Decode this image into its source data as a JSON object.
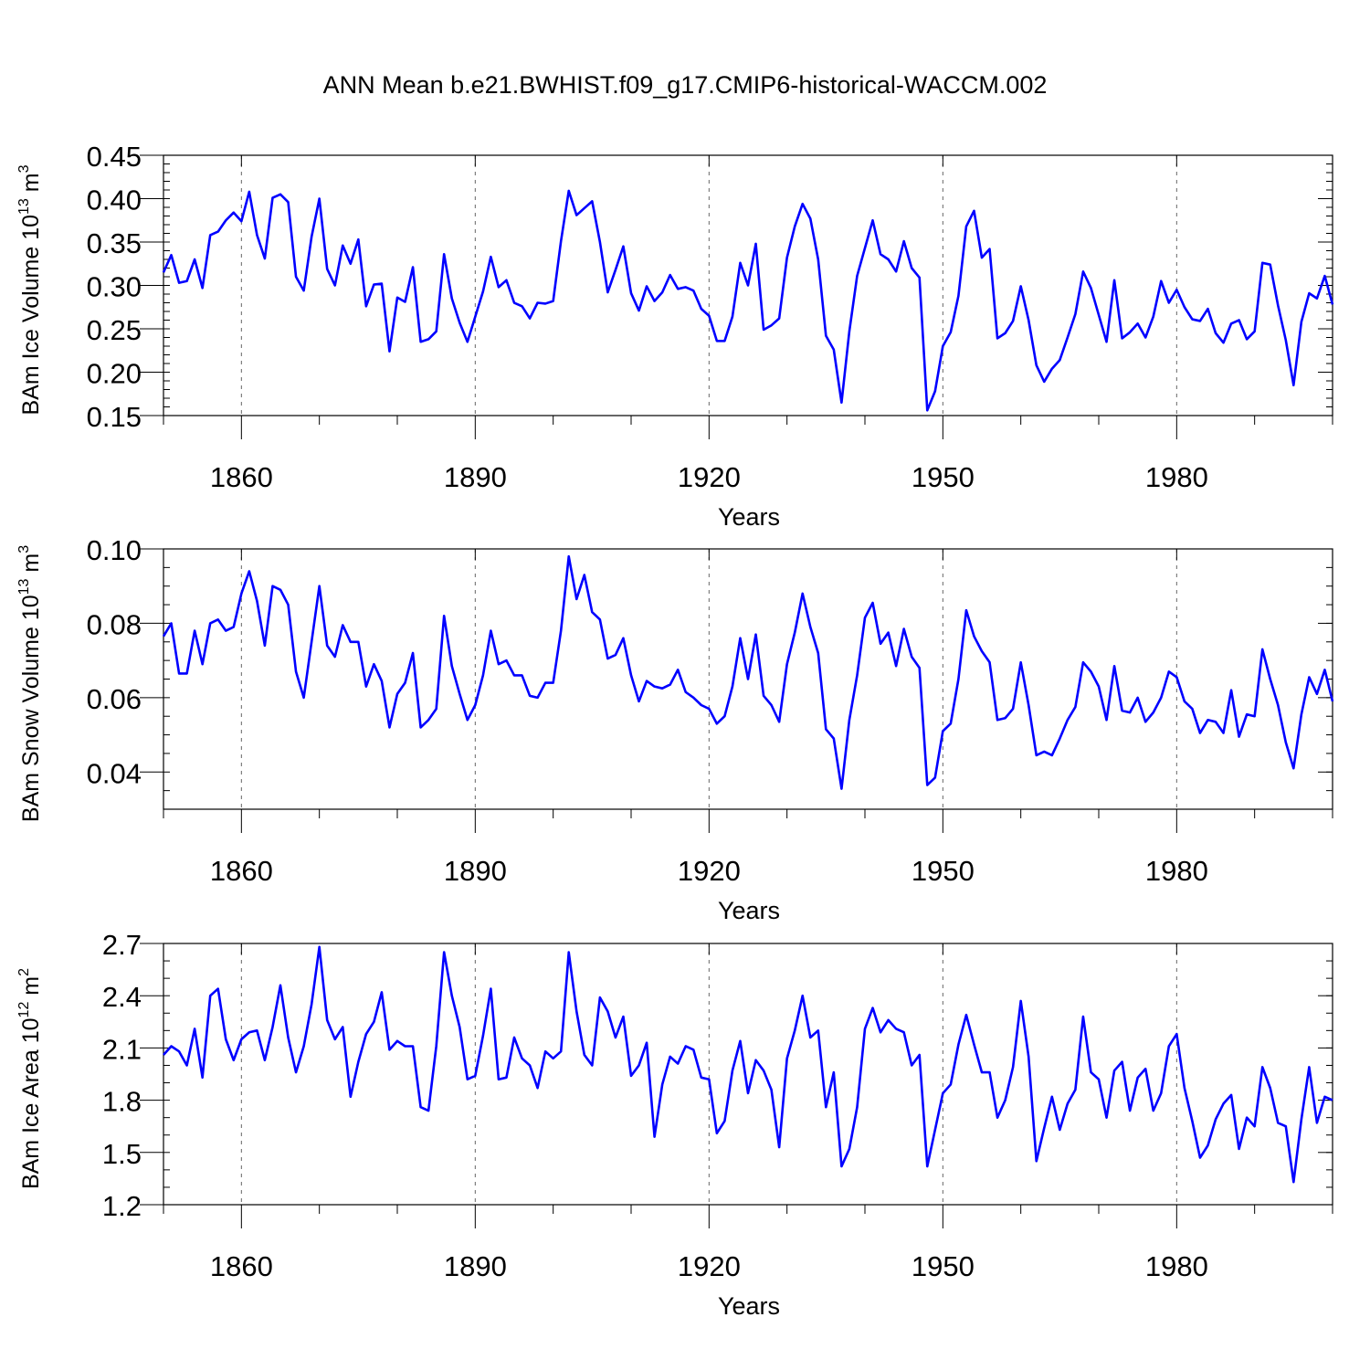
{
  "title": "ANN Mean b.e21.BWHIST.f09_g17.CMIP6-historical-WACCM.002",
  "colors": {
    "line": "#0000ff",
    "axis": "#000000",
    "grid": "#666666"
  },
  "chart_data": [
    {
      "type": "line",
      "ylabel_base": "BAm Ice Volume 10",
      "ylabel_exp": "13",
      "ylabel_unit": "m",
      "ylabel_unit_exp": "3",
      "xlabel": "Years",
      "xlim": [
        1850,
        2000
      ],
      "ylim": [
        0.15,
        0.45
      ],
      "xticks": [
        1860,
        1890,
        1920,
        1950,
        1980
      ],
      "yticks": [
        0.15,
        0.2,
        0.25,
        0.3,
        0.35,
        0.4,
        0.45
      ],
      "ytick_labels": [
        "0.15",
        "0.20",
        "0.25",
        "0.30",
        "0.35",
        "0.40",
        "0.45"
      ],
      "yminor": 0.01,
      "x_start": 1850,
      "values": [
        0.315,
        0.335,
        0.303,
        0.305,
        0.33,
        0.297,
        0.358,
        0.362,
        0.375,
        0.384,
        0.374,
        0.408,
        0.358,
        0.331,
        0.401,
        0.405,
        0.396,
        0.31,
        0.294,
        0.356,
        0.4,
        0.319,
        0.3,
        0.346,
        0.325,
        0.353,
        0.276,
        0.301,
        0.302,
        0.224,
        0.286,
        0.281,
        0.321,
        0.235,
        0.238,
        0.247,
        0.336,
        0.285,
        0.257,
        0.235,
        0.264,
        0.293,
        0.333,
        0.298,
        0.306,
        0.28,
        0.276,
        0.262,
        0.28,
        0.279,
        0.282,
        0.351,
        0.409,
        0.381,
        0.389,
        0.397,
        0.35,
        0.292,
        0.318,
        0.345,
        0.291,
        0.271,
        0.299,
        0.282,
        0.292,
        0.312,
        0.296,
        0.298,
        0.294,
        0.273,
        0.265,
        0.236,
        0.236,
        0.264,
        0.326,
        0.3,
        0.348,
        0.249,
        0.254,
        0.262,
        0.332,
        0.368,
        0.394,
        0.377,
        0.33,
        0.242,
        0.226,
        0.165,
        0.247,
        0.311,
        0.343,
        0.375,
        0.336,
        0.33,
        0.316,
        0.351,
        0.32,
        0.309,
        0.156,
        0.178,
        0.23,
        0.246,
        0.288,
        0.368,
        0.386,
        0.332,
        0.342,
        0.239,
        0.245,
        0.259,
        0.299,
        0.26,
        0.208,
        0.189,
        0.204,
        0.214,
        0.24,
        0.267,
        0.316,
        0.297,
        0.266,
        0.235,
        0.306,
        0.239,
        0.246,
        0.256,
        0.24,
        0.264,
        0.305,
        0.28,
        0.295,
        0.275,
        0.261,
        0.259,
        0.273,
        0.245,
        0.234,
        0.256,
        0.26,
        0.238,
        0.247,
        0.326,
        0.324,
        0.277,
        0.237,
        0.185,
        0.258,
        0.291,
        0.285,
        0.311,
        0.278
      ]
    },
    {
      "type": "line",
      "ylabel_base": "BAm Snow Volume 10",
      "ylabel_exp": "13",
      "ylabel_unit": "m",
      "ylabel_unit_exp": "3",
      "xlabel": "Years",
      "xlim": [
        1850,
        2000
      ],
      "ylim": [
        0.03,
        0.1
      ],
      "xticks": [
        1860,
        1890,
        1920,
        1950,
        1980
      ],
      "yticks": [
        0.04,
        0.06,
        0.08,
        0.1
      ],
      "ytick_labels": [
        "0.04",
        "0.06",
        "0.08",
        "0.10"
      ],
      "yminor": 0.005,
      "x_start": 1850,
      "values": [
        0.0765,
        0.08,
        0.0665,
        0.0665,
        0.078,
        0.069,
        0.08,
        0.081,
        0.078,
        0.079,
        0.088,
        0.094,
        0.086,
        0.074,
        0.09,
        0.089,
        0.085,
        0.067,
        0.06,
        0.075,
        0.09,
        0.074,
        0.071,
        0.0795,
        0.075,
        0.075,
        0.063,
        0.069,
        0.0645,
        0.052,
        0.061,
        0.064,
        0.072,
        0.052,
        0.054,
        0.057,
        0.082,
        0.0685,
        0.061,
        0.054,
        0.058,
        0.066,
        0.078,
        0.069,
        0.07,
        0.066,
        0.066,
        0.0605,
        0.06,
        0.064,
        0.064,
        0.078,
        0.098,
        0.0865,
        0.093,
        0.083,
        0.081,
        0.0705,
        0.0715,
        0.076,
        0.066,
        0.059,
        0.0645,
        0.063,
        0.0625,
        0.0635,
        0.0675,
        0.0615,
        0.06,
        0.058,
        0.057,
        0.053,
        0.055,
        0.063,
        0.076,
        0.065,
        0.077,
        0.0605,
        0.058,
        0.0535,
        0.069,
        0.0775,
        0.088,
        0.079,
        0.072,
        0.0515,
        0.049,
        0.0355,
        0.054,
        0.066,
        0.0815,
        0.0855,
        0.0745,
        0.0775,
        0.0685,
        0.0785,
        0.071,
        0.068,
        0.0365,
        0.0385,
        0.051,
        0.053,
        0.065,
        0.0835,
        0.0765,
        0.0725,
        0.0695,
        0.054,
        0.0545,
        0.057,
        0.0695,
        0.058,
        0.0445,
        0.0455,
        0.0445,
        0.049,
        0.054,
        0.0575,
        0.0695,
        0.067,
        0.063,
        0.054,
        0.0685,
        0.0565,
        0.056,
        0.06,
        0.0535,
        0.056,
        0.06,
        0.067,
        0.0655,
        0.059,
        0.057,
        0.0505,
        0.054,
        0.0535,
        0.0505,
        0.062,
        0.0495,
        0.0555,
        0.055,
        0.073,
        0.065,
        0.058,
        0.048,
        0.041,
        0.0555,
        0.0655,
        0.061,
        0.0675,
        0.059
      ]
    },
    {
      "type": "line",
      "ylabel_base": "BAm Ice Area 10",
      "ylabel_exp": "12",
      "ylabel_unit": "m",
      "ylabel_unit_exp": "2",
      "xlabel": "Years",
      "xlim": [
        1850,
        2000
      ],
      "ylim": [
        1.2,
        2.7
      ],
      "xticks": [
        1860,
        1890,
        1920,
        1950,
        1980
      ],
      "yticks": [
        1.2,
        1.5,
        1.8,
        2.1,
        2.4,
        2.7
      ],
      "ytick_labels": [
        "1.2",
        "1.5",
        "1.8",
        "2.1",
        "2.4",
        "2.7"
      ],
      "yminor": 0.1,
      "x_start": 1850,
      "values": [
        2.06,
        2.11,
        2.08,
        2.0,
        2.21,
        1.93,
        2.4,
        2.44,
        2.15,
        2.03,
        2.15,
        2.19,
        2.2,
        2.03,
        2.22,
        2.46,
        2.16,
        1.96,
        2.11,
        2.35,
        2.68,
        2.26,
        2.15,
        2.22,
        1.82,
        2.02,
        2.18,
        2.25,
        2.42,
        2.09,
        2.14,
        2.11,
        2.11,
        1.76,
        1.74,
        2.11,
        2.65,
        2.4,
        2.22,
        1.92,
        1.94,
        2.17,
        2.44,
        1.92,
        1.93,
        2.16,
        2.04,
        2.0,
        1.87,
        2.08,
        2.04,
        2.08,
        2.65,
        2.31,
        2.06,
        2.0,
        2.39,
        2.31,
        2.16,
        2.28,
        1.94,
        2.0,
        2.13,
        1.59,
        1.89,
        2.05,
        2.01,
        2.11,
        2.09,
        1.93,
        1.92,
        1.61,
        1.68,
        1.97,
        2.14,
        1.84,
        2.03,
        1.97,
        1.86,
        1.53,
        2.04,
        2.2,
        2.4,
        2.16,
        2.2,
        1.76,
        1.96,
        1.42,
        1.52,
        1.76,
        2.21,
        2.33,
        2.19,
        2.26,
        2.21,
        2.19,
        2.0,
        2.06,
        1.42,
        1.63,
        1.84,
        1.89,
        2.12,
        2.29,
        2.12,
        1.96,
        1.96,
        1.7,
        1.8,
        1.99,
        2.37,
        2.05,
        1.45,
        1.64,
        1.82,
        1.63,
        1.78,
        1.86,
        2.28,
        1.96,
        1.92,
        1.7,
        1.97,
        2.02,
        1.74,
        1.93,
        1.98,
        1.74,
        1.84,
        2.11,
        2.18,
        1.87,
        1.68,
        1.47,
        1.54,
        1.69,
        1.78,
        1.83,
        1.52,
        1.7,
        1.65,
        1.99,
        1.87,
        1.67,
        1.65,
        1.33,
        1.69,
        1.99,
        1.67,
        1.82,
        1.8
      ]
    }
  ]
}
